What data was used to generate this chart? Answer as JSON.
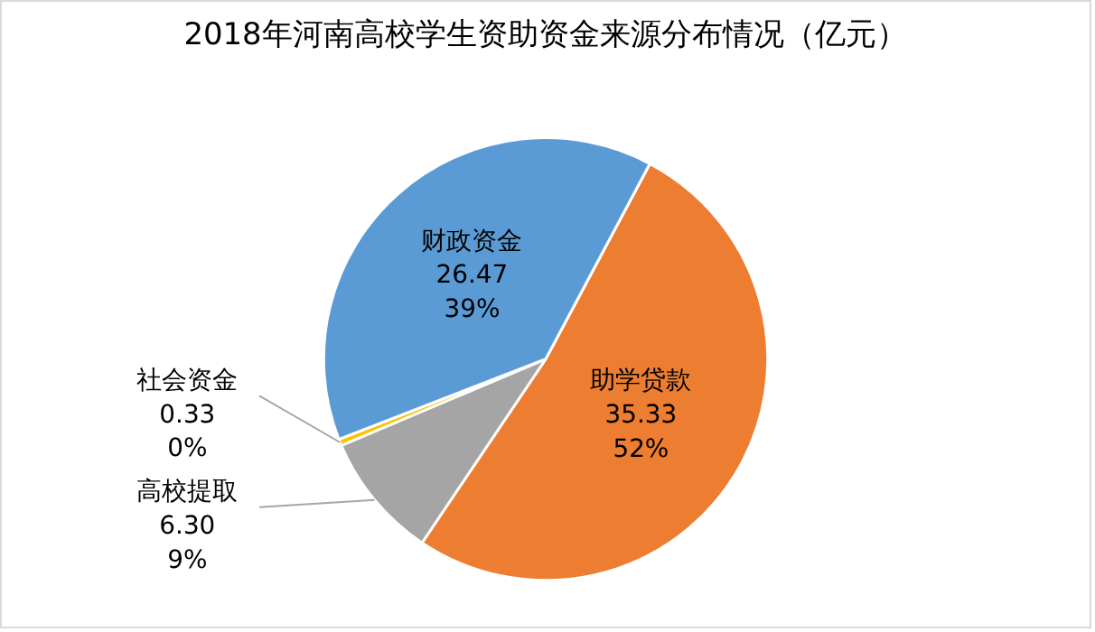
{
  "chart_data": {
    "type": "pie",
    "title": "2018年河南高校学生资助资金来源分布情况（亿元）",
    "categories": [
      "助学贷款",
      "高校提取",
      "社会资金",
      "财政资金"
    ],
    "values": [
      35.33,
      6.3,
      0.33,
      26.47
    ],
    "colors": [
      "#ed7d31",
      "#a5a5a5",
      "#ffc000",
      "#5b9bd5"
    ],
    "value_labels": [
      "35.33\n52%",
      "6.30\n9%",
      "0.33\n0%",
      "26.47\n39%"
    ],
    "legend": false
  }
}
